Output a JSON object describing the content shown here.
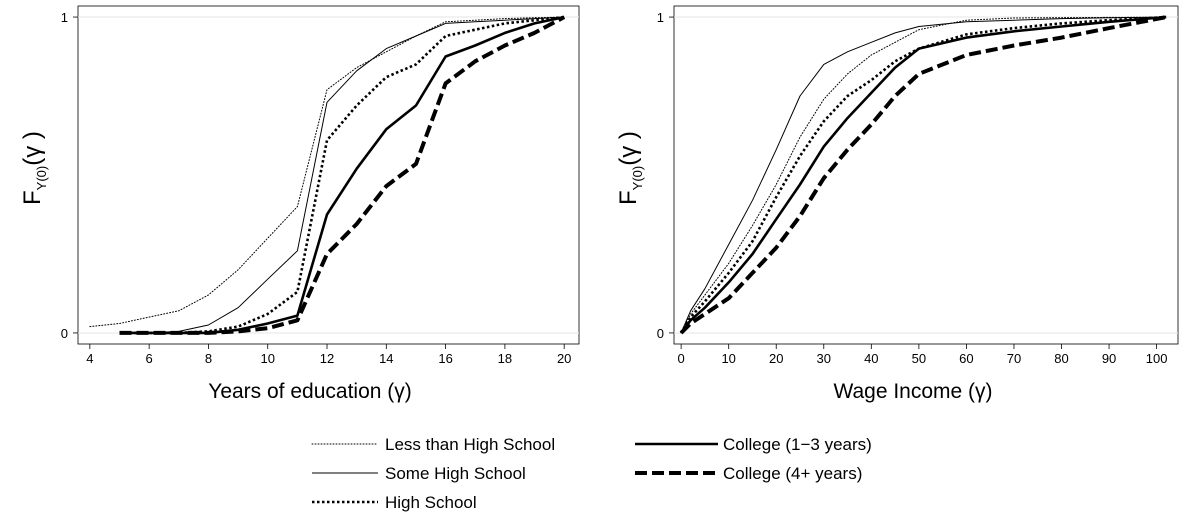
{
  "legend": [
    {
      "name": "Less than High School",
      "style": "dotted-thin"
    },
    {
      "name": "Some High School",
      "style": "solid-thin"
    },
    {
      "name": "High School",
      "style": "dotted-thick"
    },
    {
      "name": "College (1−3 years)",
      "style": "solid-thick"
    },
    {
      "name": "College (4+ years)",
      "style": "dashed-thick"
    }
  ],
  "chart_data": [
    {
      "type": "line",
      "title": "",
      "xlabel": "Years of education (γ)",
      "ylabel": {
        "main": "F",
        "sub": "Y(0)",
        "arg": "(γ )"
      },
      "xlim": [
        3.6,
        20.5
      ],
      "ylim": [
        -0.035,
        1.035
      ],
      "xticks": [
        4,
        6,
        8,
        10,
        12,
        14,
        16,
        18,
        20
      ],
      "yticks": [
        0,
        1
      ],
      "grid": "horizontal",
      "series": [
        {
          "name": "Less than High School",
          "style": "dotted-thin",
          "x": [
            4,
            5,
            6,
            7,
            8,
            9,
            10,
            11,
            12,
            13,
            14,
            15,
            16,
            17,
            18,
            19,
            20
          ],
          "y": [
            0.02,
            0.03,
            0.05,
            0.07,
            0.12,
            0.2,
            0.3,
            0.4,
            0.77,
            0.84,
            0.89,
            0.94,
            0.985,
            0.99,
            0.995,
            0.998,
            1.0
          ]
        },
        {
          "name": "Some High School",
          "style": "solid-thin",
          "x": [
            5,
            6,
            7,
            8,
            9,
            10,
            11,
            12,
            13,
            14,
            15,
            16,
            17,
            18,
            19,
            20
          ],
          "y": [
            0.0,
            0.0,
            0.005,
            0.025,
            0.08,
            0.17,
            0.26,
            0.73,
            0.83,
            0.9,
            0.94,
            0.98,
            0.985,
            0.99,
            0.995,
            1.0
          ]
        },
        {
          "name": "High School",
          "style": "dotted-thick",
          "x": [
            5,
            6,
            7,
            8,
            9,
            10,
            11,
            12,
            13,
            14,
            15,
            16,
            17,
            18,
            19,
            20
          ],
          "y": [
            0.0,
            0.0,
            0.0,
            0.005,
            0.02,
            0.06,
            0.13,
            0.61,
            0.72,
            0.81,
            0.85,
            0.94,
            0.96,
            0.98,
            0.99,
            1.0
          ]
        },
        {
          "name": "College (1−3 years)",
          "style": "solid-thick",
          "x": [
            5,
            6,
            7,
            8,
            9,
            10,
            11,
            12,
            13,
            14,
            15,
            16,
            17,
            18,
            19,
            20
          ],
          "y": [
            0.0,
            0.0,
            0.0,
            0.0,
            0.01,
            0.03,
            0.055,
            0.375,
            0.52,
            0.645,
            0.72,
            0.875,
            0.91,
            0.95,
            0.98,
            1.0
          ]
        },
        {
          "name": "College (4+ years)",
          "style": "dashed-thick",
          "x": [
            5,
            6,
            7,
            8,
            9,
            10,
            11,
            12,
            13,
            14,
            15,
            16,
            17,
            18,
            19,
            20
          ],
          "y": [
            0.0,
            0.0,
            0.0,
            0.0,
            0.005,
            0.015,
            0.04,
            0.25,
            0.345,
            0.465,
            0.535,
            0.79,
            0.86,
            0.91,
            0.95,
            1.0
          ]
        }
      ]
    },
    {
      "type": "line",
      "title": "",
      "xlabel": "Wage Income (γ)",
      "ylabel": {
        "main": "F",
        "sub": "Y(0)",
        "arg": "(γ )"
      },
      "xlim": [
        -1.5,
        104.5
      ],
      "ylim": [
        -0.035,
        1.035
      ],
      "xticks": [
        0,
        10,
        20,
        30,
        40,
        50,
        60,
        70,
        80,
        90,
        100
      ],
      "yticks": [
        0,
        1
      ],
      "grid": "horizontal",
      "series": [
        {
          "name": "Less than High School",
          "style": "dotted-thin",
          "x": [
            0,
            2,
            5,
            10,
            15,
            20,
            25,
            30,
            35,
            40,
            45,
            50,
            60,
            70,
            80,
            90,
            102
          ],
          "y": [
            0.0,
            0.06,
            0.12,
            0.22,
            0.34,
            0.47,
            0.62,
            0.74,
            0.82,
            0.88,
            0.92,
            0.96,
            0.99,
            0.997,
            0.998,
            0.999,
            1.0
          ]
        },
        {
          "name": "Some High School",
          "style": "solid-thin",
          "x": [
            0,
            2,
            5,
            10,
            15,
            20,
            25,
            30,
            35,
            40,
            45,
            50,
            60,
            70,
            80,
            90,
            102
          ],
          "y": [
            0.0,
            0.07,
            0.14,
            0.28,
            0.42,
            0.58,
            0.75,
            0.85,
            0.89,
            0.92,
            0.95,
            0.97,
            0.985,
            0.99,
            0.995,
            0.998,
            1.0
          ]
        },
        {
          "name": "High School",
          "style": "dotted-thick",
          "x": [
            0,
            2,
            5,
            10,
            15,
            20,
            25,
            30,
            35,
            40,
            45,
            50,
            60,
            70,
            80,
            90,
            102
          ],
          "y": [
            0.0,
            0.05,
            0.1,
            0.19,
            0.29,
            0.43,
            0.56,
            0.67,
            0.75,
            0.8,
            0.86,
            0.9,
            0.945,
            0.965,
            0.98,
            0.99,
            1.0
          ]
        },
        {
          "name": "College (1−3 years)",
          "style": "solid-thick",
          "x": [
            0,
            2,
            5,
            10,
            15,
            20,
            25,
            30,
            35,
            40,
            45,
            50,
            60,
            70,
            80,
            90,
            102
          ],
          "y": [
            0.0,
            0.04,
            0.08,
            0.16,
            0.25,
            0.36,
            0.47,
            0.59,
            0.68,
            0.76,
            0.84,
            0.9,
            0.935,
            0.955,
            0.97,
            0.985,
            1.0
          ]
        },
        {
          "name": "College (4+ years)",
          "style": "dashed-thick",
          "x": [
            0,
            2,
            5,
            10,
            15,
            20,
            25,
            30,
            35,
            40,
            45,
            50,
            60,
            70,
            80,
            90,
            102
          ],
          "y": [
            0.0,
            0.03,
            0.06,
            0.11,
            0.19,
            0.27,
            0.37,
            0.49,
            0.58,
            0.66,
            0.75,
            0.82,
            0.88,
            0.91,
            0.935,
            0.965,
            1.0
          ]
        }
      ]
    }
  ]
}
